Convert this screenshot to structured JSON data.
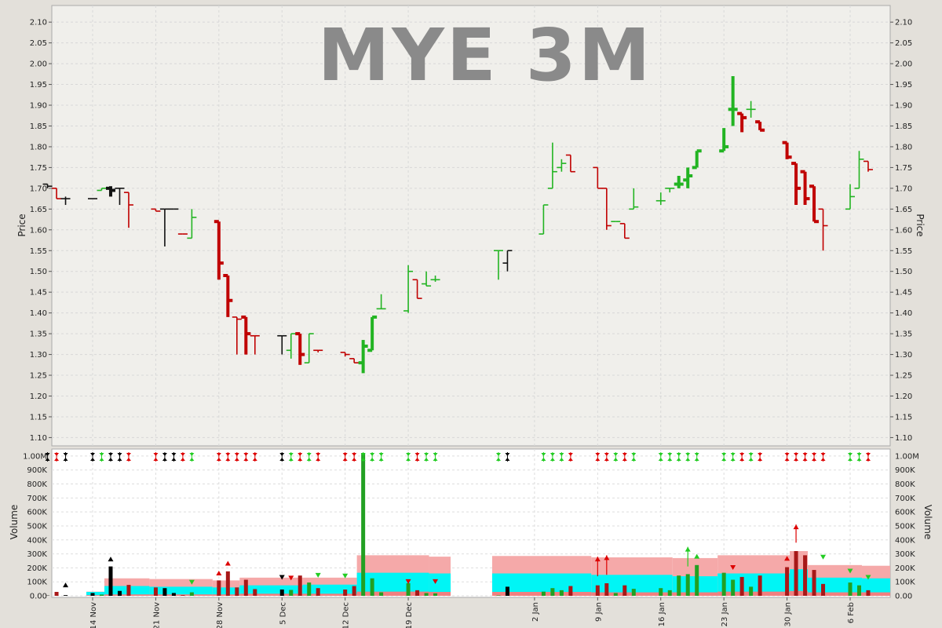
{
  "chart_data": [
    {
      "type": "ohlc",
      "title": "MYE 3M",
      "ylabel": "Price",
      "ylim": [
        1.08,
        2.14
      ],
      "y_ticks": [
        "1.10",
        "1.15",
        "1.20",
        "1.25",
        "1.30",
        "1.35",
        "1.40",
        "1.45",
        "1.50",
        "1.55",
        "1.60",
        "1.65",
        "1.70",
        "1.75",
        "1.80",
        "1.85",
        "1.90",
        "1.95",
        "2.00",
        "2.05",
        "2.10"
      ],
      "grid": true,
      "colors": {
        "up": "#22b422",
        "down": "#c00000",
        "flat": "#111111"
      },
      "bars": [
        {
          "d": "2016-11-09",
          "o": 1.71,
          "h": 1.71,
          "l": 1.7,
          "c": 1.705,
          "v": 2000,
          "dir": "flat"
        },
        {
          "d": "2016-11-10",
          "o": 1.7,
          "h": 1.7,
          "l": 1.675,
          "c": 1.675,
          "v": 28000,
          "dir": "down"
        },
        {
          "d": "2016-11-11",
          "o": 1.675,
          "h": 1.68,
          "l": 1.66,
          "c": 1.675,
          "v": 5000,
          "dir": "flat"
        },
        {
          "d": "2016-11-14",
          "o": 1.675,
          "h": 1.675,
          "l": 1.675,
          "c": 1.675,
          "v": 20000,
          "dir": "flat"
        },
        {
          "d": "2016-11-15",
          "o": 1.695,
          "h": 1.7,
          "l": 1.695,
          "c": 1.7,
          "v": 9000,
          "dir": "up"
        },
        {
          "d": "2016-11-16",
          "o": 1.7,
          "h": 1.705,
          "l": 1.68,
          "c": 1.695,
          "v": 210000,
          "dir": "flat"
        },
        {
          "d": "2016-11-17",
          "o": 1.7,
          "h": 1.7,
          "l": 1.66,
          "c": 1.7,
          "v": 35000,
          "dir": "flat"
        },
        {
          "d": "2016-11-18",
          "o": 1.69,
          "h": 1.69,
          "l": 1.605,
          "c": 1.66,
          "v": 78000,
          "dir": "down"
        },
        {
          "d": "2016-11-21",
          "o": 1.65,
          "h": 1.65,
          "l": 1.645,
          "c": 1.645,
          "v": 60000,
          "dir": "down"
        },
        {
          "d": "2016-11-22",
          "o": 1.65,
          "h": 1.65,
          "l": 1.56,
          "c": 1.65,
          "v": 55000,
          "dir": "flat"
        },
        {
          "d": "2016-11-23",
          "o": 1.65,
          "h": 1.65,
          "l": 1.65,
          "c": 1.65,
          "v": 20000,
          "dir": "flat"
        },
        {
          "d": "2016-11-24",
          "o": 1.59,
          "h": 1.59,
          "l": 1.59,
          "c": 1.59,
          "v": 5000,
          "dir": "down"
        },
        {
          "d": "2016-11-25",
          "o": 1.58,
          "h": 1.65,
          "l": 1.58,
          "c": 1.63,
          "v": 25000,
          "dir": "up"
        },
        {
          "d": "2016-11-28",
          "o": 1.62,
          "h": 1.62,
          "l": 1.48,
          "c": 1.52,
          "v": 110000,
          "dir": "down"
        },
        {
          "d": "2016-11-29",
          "o": 1.49,
          "h": 1.49,
          "l": 1.39,
          "c": 1.43,
          "v": 175000,
          "dir": "down"
        },
        {
          "d": "2016-11-30",
          "o": 1.39,
          "h": 1.39,
          "l": 1.3,
          "c": 1.385,
          "v": 60000,
          "dir": "down"
        },
        {
          "d": "2016-12-01",
          "o": 1.39,
          "h": 1.39,
          "l": 1.3,
          "c": 1.35,
          "v": 115000,
          "dir": "down"
        },
        {
          "d": "2016-12-02",
          "o": 1.345,
          "h": 1.345,
          "l": 1.3,
          "c": 1.345,
          "v": 48000,
          "dir": "down"
        },
        {
          "d": "2016-12-05",
          "o": 1.345,
          "h": 1.345,
          "l": 1.3,
          "c": 1.345,
          "v": 45000,
          "dir": "flat"
        },
        {
          "d": "2016-12-06",
          "o": 1.31,
          "h": 1.35,
          "l": 1.29,
          "c": 1.35,
          "v": 42000,
          "dir": "up"
        },
        {
          "d": "2016-12-07",
          "o": 1.35,
          "h": 1.35,
          "l": 1.275,
          "c": 1.3,
          "v": 145000,
          "dir": "down"
        },
        {
          "d": "2016-12-08",
          "o": 1.28,
          "h": 1.35,
          "l": 1.28,
          "c": 1.35,
          "v": 95000,
          "dir": "up"
        },
        {
          "d": "2016-12-09",
          "o": 1.31,
          "h": 1.31,
          "l": 1.305,
          "c": 1.31,
          "v": 55000,
          "dir": "down"
        },
        {
          "d": "2016-12-12",
          "o": 1.305,
          "h": 1.305,
          "l": 1.295,
          "c": 1.3,
          "v": 45000,
          "dir": "down"
        },
        {
          "d": "2016-12-13",
          "o": 1.29,
          "h": 1.29,
          "l": 1.28,
          "c": 1.28,
          "v": 70000,
          "dir": "down"
        },
        {
          "d": "2016-12-14",
          "o": 1.28,
          "h": 1.335,
          "l": 1.255,
          "c": 1.32,
          "v": 1020000,
          "dir": "up"
        },
        {
          "d": "2016-12-15",
          "o": 1.31,
          "h": 1.39,
          "l": 1.31,
          "c": 1.39,
          "v": 125000,
          "dir": "up"
        },
        {
          "d": "2016-12-16",
          "o": 1.41,
          "h": 1.445,
          "l": 1.41,
          "c": 1.41,
          "v": 25000,
          "dir": "up"
        },
        {
          "d": "2016-12-19",
          "o": 1.405,
          "h": 1.515,
          "l": 1.4,
          "c": 1.5,
          "v": 90000,
          "dir": "up"
        },
        {
          "d": "2016-12-20",
          "o": 1.48,
          "h": 1.48,
          "l": 1.435,
          "c": 1.435,
          "v": 40000,
          "dir": "down"
        },
        {
          "d": "2016-12-21",
          "o": 1.47,
          "h": 1.5,
          "l": 1.465,
          "c": 1.465,
          "v": 20000,
          "dir": "up"
        },
        {
          "d": "2016-12-22",
          "o": 1.48,
          "h": 1.49,
          "l": 1.475,
          "c": 1.48,
          "v": 18000,
          "dir": "up"
        },
        {
          "d": "2016-12-29",
          "o": 1.55,
          "h": 1.55,
          "l": 1.48,
          "c": 1.55,
          "v": 3000,
          "dir": "up"
        },
        {
          "d": "2016-12-30",
          "o": 1.52,
          "h": 1.55,
          "l": 1.5,
          "c": 1.55,
          "v": 65000,
          "dir": "flat"
        },
        {
          "d": "2017-01-03",
          "o": 1.59,
          "h": 1.66,
          "l": 1.59,
          "c": 1.66,
          "v": 30000,
          "dir": "up"
        },
        {
          "d": "2017-01-04",
          "o": 1.7,
          "h": 1.81,
          "l": 1.7,
          "c": 1.74,
          "v": 55000,
          "dir": "up"
        },
        {
          "d": "2017-01-05",
          "o": 1.75,
          "h": 1.77,
          "l": 1.74,
          "c": 1.76,
          "v": 40000,
          "dir": "up"
        },
        {
          "d": "2017-01-06",
          "o": 1.78,
          "h": 1.78,
          "l": 1.74,
          "c": 1.74,
          "v": 70000,
          "dir": "down"
        },
        {
          "d": "2017-01-09",
          "o": 1.75,
          "h": 1.75,
          "l": 1.7,
          "c": 1.7,
          "v": 75000,
          "dir": "down"
        },
        {
          "d": "2017-01-10",
          "o": 1.7,
          "h": 1.7,
          "l": 1.6,
          "c": 1.61,
          "v": 90000,
          "dir": "down"
        },
        {
          "d": "2017-01-11",
          "o": 1.62,
          "h": 1.62,
          "l": 1.62,
          "c": 1.62,
          "v": 20000,
          "dir": "up"
        },
        {
          "d": "2017-01-12",
          "o": 1.615,
          "h": 1.615,
          "l": 1.58,
          "c": 1.58,
          "v": 75000,
          "dir": "down"
        },
        {
          "d": "2017-01-13",
          "o": 1.65,
          "h": 1.7,
          "l": 1.65,
          "c": 1.655,
          "v": 50000,
          "dir": "up"
        },
        {
          "d": "2017-01-16",
          "o": 1.67,
          "h": 1.69,
          "l": 1.66,
          "c": 1.67,
          "v": 55000,
          "dir": "up"
        },
        {
          "d": "2017-01-17",
          "o": 1.7,
          "h": 1.7,
          "l": 1.69,
          "c": 1.7,
          "v": 40000,
          "dir": "up"
        },
        {
          "d": "2017-01-18",
          "o": 1.71,
          "h": 1.73,
          "l": 1.7,
          "c": 1.71,
          "v": 145000,
          "dir": "up"
        },
        {
          "d": "2017-01-19",
          "o": 1.72,
          "h": 1.75,
          "l": 1.7,
          "c": 1.73,
          "v": 155000,
          "dir": "up"
        },
        {
          "d": "2017-01-20",
          "o": 1.75,
          "h": 1.79,
          "l": 1.75,
          "c": 1.79,
          "v": 220000,
          "dir": "up"
        },
        {
          "d": "2017-01-23",
          "o": 1.79,
          "h": 1.845,
          "l": 1.79,
          "c": 1.8,
          "v": 165000,
          "dir": "up"
        },
        {
          "d": "2017-01-24",
          "o": 1.89,
          "h": 1.97,
          "l": 1.85,
          "c": 1.89,
          "v": 115000,
          "dir": "up"
        },
        {
          "d": "2017-01-25",
          "o": 1.88,
          "h": 1.88,
          "l": 1.835,
          "c": 1.87,
          "v": 135000,
          "dir": "down"
        },
        {
          "d": "2017-01-26",
          "o": 1.89,
          "h": 1.91,
          "l": 1.87,
          "c": 1.89,
          "v": 65000,
          "dir": "up"
        },
        {
          "d": "2017-01-27",
          "o": 1.86,
          "h": 1.86,
          "l": 1.84,
          "c": 1.84,
          "v": 145000,
          "dir": "down"
        },
        {
          "d": "2017-01-30",
          "o": 1.81,
          "h": 1.81,
          "l": 1.77,
          "c": 1.775,
          "v": 205000,
          "dir": "down"
        },
        {
          "d": "2017-01-31",
          "o": 1.76,
          "h": 1.76,
          "l": 1.66,
          "c": 1.7,
          "v": 320000,
          "dir": "down"
        },
        {
          "d": "2017-02-01",
          "o": 1.74,
          "h": 1.74,
          "l": 1.66,
          "c": 1.675,
          "v": 290000,
          "dir": "down"
        },
        {
          "d": "2017-02-02",
          "o": 1.705,
          "h": 1.705,
          "l": 1.62,
          "c": 1.62,
          "v": 185000,
          "dir": "down"
        },
        {
          "d": "2017-02-03",
          "o": 1.65,
          "h": 1.65,
          "l": 1.55,
          "c": 1.61,
          "v": 85000,
          "dir": "down"
        },
        {
          "d": "2017-02-06",
          "o": 1.65,
          "h": 1.71,
          "l": 1.65,
          "c": 1.68,
          "v": 95000,
          "dir": "up"
        },
        {
          "d": "2017-02-07",
          "o": 1.7,
          "h": 1.79,
          "l": 1.7,
          "c": 1.77,
          "v": 75000,
          "dir": "up"
        },
        {
          "d": "2017-02-08",
          "o": 1.765,
          "h": 1.765,
          "l": 1.74,
          "c": 1.745,
          "v": 40000,
          "dir": "down"
        }
      ]
    },
    {
      "type": "bar",
      "ylabel": "Volume",
      "ylim": [
        0,
        1050000
      ],
      "y_ticks": [
        "0.00",
        "100K",
        "200K",
        "300K",
        "400K",
        "500K",
        "600K",
        "700K",
        "800K",
        "900K",
        "1.00M"
      ],
      "x_ticks": [
        {
          "d": "2016-11-14",
          "label": "14 Nov"
        },
        {
          "d": "2016-11-21",
          "label": "21 Nov"
        },
        {
          "d": "2016-11-28",
          "label": "28 Nov"
        },
        {
          "d": "2016-12-05",
          "label": "5 Dec"
        },
        {
          "d": "2016-12-12",
          "label": "12 Dec"
        },
        {
          "d": "2016-12-19",
          "label": "19 Dec"
        },
        {
          "d": "2017-01-02",
          "label": "2 Jan"
        },
        {
          "d": "2017-01-09",
          "label": "9 Jan"
        },
        {
          "d": "2017-01-16",
          "label": "16 Jan"
        },
        {
          "d": "2017-01-23",
          "label": "23 Jan"
        },
        {
          "d": "2017-01-30",
          "label": "30 Jan"
        },
        {
          "d": "2017-02-06",
          "label": "6 Feb"
        }
      ],
      "band_colors": {
        "upper": "#f5a9a9",
        "middle": "#00f5f5",
        "lower": "#f08080"
      },
      "bands": [
        {
          "d": "2016-11-14",
          "upper": 30000,
          "middle": 28000,
          "lower": 5000
        },
        {
          "d": "2016-11-16",
          "upper": 125000,
          "middle": 70000,
          "lower": 10000
        },
        {
          "d": "2016-11-21",
          "upper": 120000,
          "middle": 65000,
          "lower": 10000
        },
        {
          "d": "2016-11-28",
          "upper": 110000,
          "middle": 60000,
          "lower": 10000
        },
        {
          "d": "2016-12-01",
          "upper": 130000,
          "middle": 75000,
          "lower": 15000
        },
        {
          "d": "2016-12-08",
          "upper": 130000,
          "middle": 80000,
          "lower": 15000
        },
        {
          "d": "2016-12-14",
          "upper": 290000,
          "middle": 165000,
          "lower": 30000
        },
        {
          "d": "2016-12-22",
          "upper": 280000,
          "middle": 160000,
          "lower": 28000
        },
        {
          "d": "2016-12-29",
          "upper": 285000,
          "middle": 160000,
          "lower": 28000
        },
        {
          "d": "2017-01-09",
          "upper": 275000,
          "middle": 150000,
          "lower": 25000
        },
        {
          "d": "2017-01-18",
          "upper": 270000,
          "middle": 140000,
          "lower": 25000
        },
        {
          "d": "2017-01-23",
          "upper": 290000,
          "middle": 160000,
          "lower": 30000
        },
        {
          "d": "2017-01-31",
          "upper": 320000,
          "middle": 190000,
          "lower": 35000
        },
        {
          "d": "2017-02-02",
          "upper": 220000,
          "middle": 130000,
          "lower": 25000
        },
        {
          "d": "2017-02-08",
          "upper": 215000,
          "middle": 125000,
          "lower": 25000
        }
      ],
      "signals": [
        {
          "d": "2016-11-11",
          "v": 95000,
          "dir": "up",
          "color": "#000000",
          "len": 0
        },
        {
          "d": "2016-11-16",
          "v": 280000,
          "dir": "up",
          "color": "#000000",
          "len": 0
        },
        {
          "d": "2016-11-25",
          "v": 80000,
          "dir": "down",
          "color": "#22cc22",
          "len": 0
        },
        {
          "d": "2016-11-28",
          "v": 180000,
          "dir": "up",
          "color": "#dd0000",
          "len": 0
        },
        {
          "d": "2016-11-29",
          "v": 250000,
          "dir": "up",
          "color": "#dd0000",
          "len": 0
        },
        {
          "d": "2016-12-05",
          "v": 115000,
          "dir": "down",
          "color": "#000000",
          "len": 0
        },
        {
          "d": "2016-12-06",
          "v": 110000,
          "dir": "down",
          "color": "#dd0000",
          "len": 0
        },
        {
          "d": "2016-12-09",
          "v": 130000,
          "dir": "down",
          "color": "#22cc22",
          "len": 0
        },
        {
          "d": "2016-12-12",
          "v": 125000,
          "dir": "down",
          "color": "#22cc22",
          "len": 0
        },
        {
          "d": "2016-12-19",
          "v": 85000,
          "dir": "down",
          "color": "#dd0000",
          "len": 0
        },
        {
          "d": "2016-12-22",
          "v": 85000,
          "dir": "down",
          "color": "#dd0000",
          "len": 0
        },
        {
          "d": "2017-01-09",
          "v": 280000,
          "dir": "up",
          "color": "#dd0000",
          "len": 140000
        },
        {
          "d": "2017-01-10",
          "v": 290000,
          "dir": "up",
          "color": "#dd0000",
          "len": 140000
        },
        {
          "d": "2017-01-19",
          "v": 350000,
          "dir": "up",
          "color": "#22cc22",
          "len": 140000
        },
        {
          "d": "2017-01-20",
          "v": 300000,
          "dir": "up",
          "color": "#22cc22",
          "len": 0
        },
        {
          "d": "2017-01-24",
          "v": 185000,
          "dir": "down",
          "color": "#dd0000",
          "len": 0
        },
        {
          "d": "2017-01-30",
          "v": 285000,
          "dir": "up",
          "color": "#dd0000",
          "len": 0
        },
        {
          "d": "2017-01-31",
          "v": 510000,
          "dir": "up",
          "color": "#dd0000",
          "len": 130000
        },
        {
          "d": "2017-02-03",
          "v": 260000,
          "dir": "down",
          "color": "#22cc22",
          "len": 0
        },
        {
          "d": "2017-02-06",
          "v": 160000,
          "dir": "down",
          "color": "#22cc22",
          "len": 0
        },
        {
          "d": "2017-02-08",
          "v": 115000,
          "dir": "down",
          "color": "#22cc22",
          "len": 0
        }
      ]
    }
  ]
}
